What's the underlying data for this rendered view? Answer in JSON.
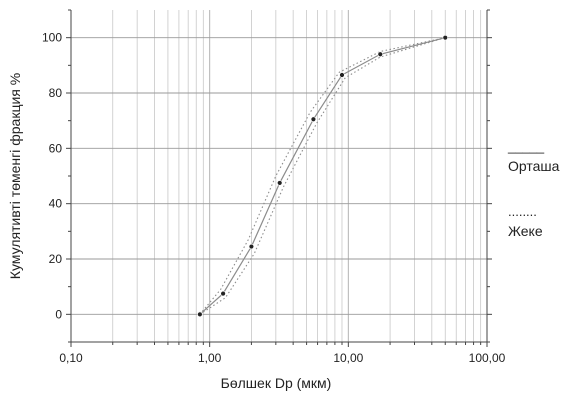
{
  "chart_data": {
    "type": "line",
    "title": "",
    "xlabel": "Бөлшек Dp (мкм)",
    "ylabel": "Кумулятивті төменгі фракция %",
    "x_scale": "log",
    "xlim": [
      0.1,
      100
    ],
    "ylim": [
      -10,
      110
    ],
    "x_ticks": [
      0.1,
      1,
      10,
      100
    ],
    "x_tick_labels": [
      "0,10",
      "1,00",
      "10,00",
      "100,00"
    ],
    "y_ticks": [
      0,
      20,
      40,
      60,
      80,
      100
    ],
    "y_tick_labels": [
      "0",
      "20",
      "40",
      "60",
      "80",
      "100"
    ],
    "grid": true,
    "legend_position": "right",
    "series": [
      {
        "name": "Орташа",
        "legend_symbol": "_____",
        "style": "solid",
        "color": "#8c8c8c",
        "x": [
          0.85,
          1.25,
          2.0,
          3.2,
          5.6,
          9.0,
          17.0,
          50.0
        ],
        "y": [
          0,
          7.5,
          24.5,
          47.5,
          70.5,
          86.5,
          94,
          100
        ]
      },
      {
        "name": "Жеке",
        "legend_symbol": "........",
        "style": "dotted",
        "color": "#8c8c8c",
        "lines": [
          {
            "x": [
              0.85,
              1.3,
              2.1,
              3.4,
              5.9,
              9.5,
              17.0,
              50.0
            ],
            "y": [
              0,
              6,
              22,
              46,
              69,
              85.5,
              93,
              100
            ]
          },
          {
            "x": [
              0.85,
              1.2,
              1.9,
              3.0,
              5.3,
              8.6,
              17.0,
              50.0
            ],
            "y": [
              0,
              9,
              27,
              50,
              73,
              87.5,
              95,
              100
            ]
          }
        ]
      }
    ]
  }
}
